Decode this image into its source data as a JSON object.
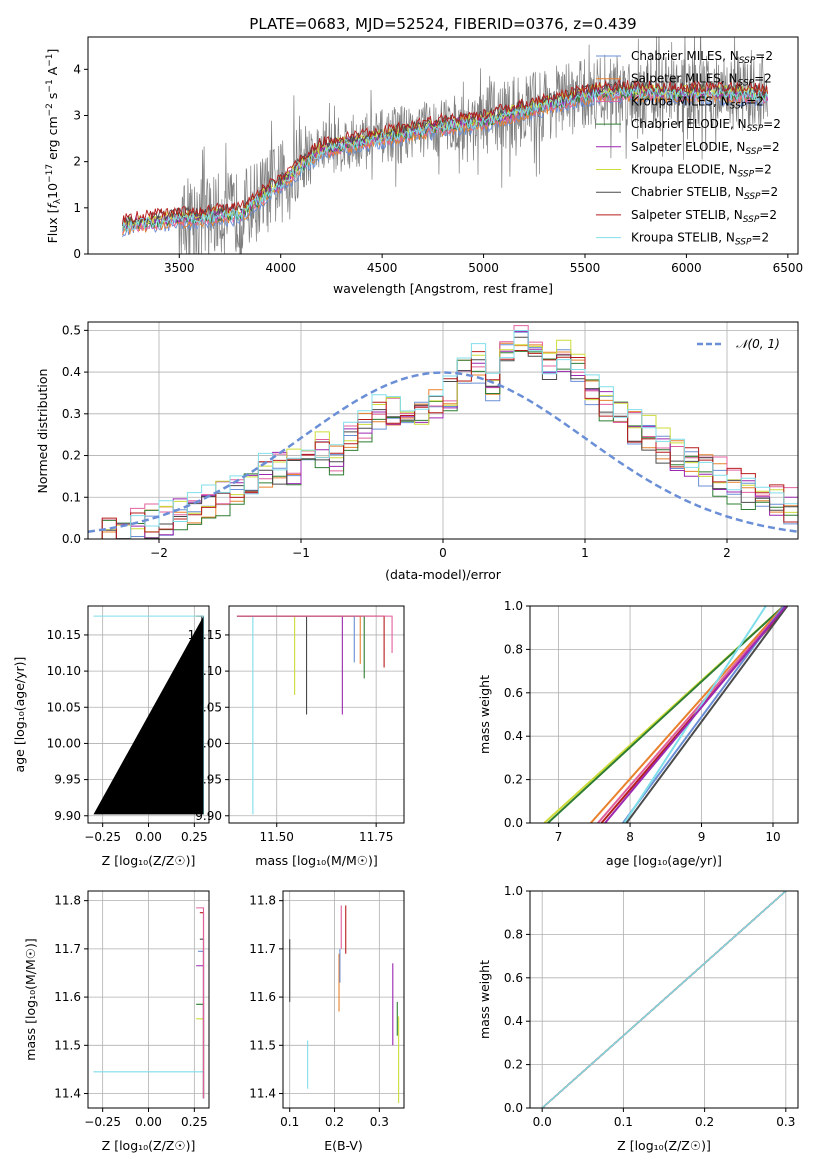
{
  "palette": {
    "Chabrier MILES": "#6b8fd6",
    "Salpeter MILES": "#e8812c",
    "Kroupa MILES": "#e0609e",
    "Chabrier ELODIE": "#2e7d32",
    "Salpeter ELODIE": "#9c27b0",
    "Kroupa ELODIE": "#cddc39",
    "Chabrier STELIB": "#4a4a4a",
    "Salpeter STELIB": "#b71c1c",
    "Kroupa STELIB": "#80deea",
    "Gaussian": "#6b8fd6",
    "data": "#7f7f7f"
  },
  "chart_data": [
    {
      "id": "spectrum",
      "type": "line",
      "title": "PLATE=0683, MJD=52524, FIBERID=0376, z=0.439",
      "xlabel": "wavelength [Angstrom, rest frame]",
      "ylabel": "Flux [f_λ 10^-17 erg cm^-2 s^-1 A^-1]",
      "xlim": [
        3050,
        6550
      ],
      "ylim": [
        0,
        4.7
      ],
      "xticks": [
        "3500",
        "4000",
        "4500",
        "5000",
        "5500",
        "6000",
        "6500"
      ],
      "yticks": [
        "0",
        "1",
        "2",
        "3",
        "4"
      ],
      "legend_loc": "upper right",
      "legend": [
        {
          "base": "Chabrier MILES, N",
          "sub": "SSP",
          "tail": "=2"
        },
        {
          "base": "Salpeter MILES, N",
          "sub": "SSP",
          "tail": "=2"
        },
        {
          "base": "Kroupa MILES, N",
          "sub": "SSP",
          "tail": "=2"
        },
        {
          "base": "Chabrier ELODIE, N",
          "sub": "SSP",
          "tail": "=2"
        },
        {
          "base": "Salpeter ELODIE, N",
          "sub": "SSP",
          "tail": "=2"
        },
        {
          "base": "Kroupa ELODIE, N",
          "sub": "SSP",
          "tail": "=2"
        },
        {
          "base": "Chabrier STELIB, N",
          "sub": "SSP",
          "tail": "=2"
        },
        {
          "base": "Salpeter STELIB, N",
          "sub": "SSP",
          "tail": "=2"
        },
        {
          "base": "Kroupa STELIB, N",
          "sub": "SSP",
          "tail": "=2"
        }
      ],
      "model_continuum": {
        "x": [
          3220,
          3500,
          3800,
          4000,
          4200,
          4500,
          4800,
          5000,
          5300,
          5600,
          5900,
          6200,
          6400
        ],
        "y": [
          0.65,
          0.8,
          0.9,
          1.55,
          2.3,
          2.55,
          2.8,
          2.9,
          3.25,
          3.55,
          3.5,
          3.5,
          3.45
        ]
      },
      "grid": false
    },
    {
      "id": "residuals",
      "type": "histogram",
      "xlabel": "(data-model)/error",
      "ylabel": "Normed distribution",
      "xlim": [
        -2.5,
        2.5
      ],
      "ylim": [
        0,
        0.52
      ],
      "xticks": [
        "−2",
        "−1",
        "0",
        "1",
        "2"
      ],
      "yticks": [
        "0.0",
        "0.1",
        "0.2",
        "0.3",
        "0.4",
        "0.5"
      ],
      "legend": [
        "𝒩(0, 1)"
      ],
      "legend_loc": "upper right",
      "series_name": "𝒩(0, 1)",
      "gaussian": {
        "mu": 0,
        "sigma": 1
      },
      "bins": [
        -2.5,
        -2.4,
        -2.3,
        -2.2,
        -2.1,
        -2.0,
        -1.9,
        -1.8,
        -1.7,
        -1.6,
        -1.5,
        -1.4,
        -1.3,
        -1.2,
        -1.1,
        -1.0,
        -0.9,
        -0.8,
        -0.7,
        -0.6,
        -0.5,
        -0.4,
        -0.3,
        -0.2,
        -0.1,
        0.0,
        0.1,
        0.2,
        0.3,
        0.4,
        0.5,
        0.6,
        0.7,
        0.8,
        0.9,
        1.0,
        1.1,
        1.2,
        1.3,
        1.4,
        1.5,
        1.6,
        1.7,
        1.8,
        1.9,
        2.0,
        2.1,
        2.2,
        2.3,
        2.4,
        2.5
      ],
      "hist_base": [
        0.01,
        0.015,
        0.02,
        0.03,
        0.04,
        0.05,
        0.06,
        0.07,
        0.08,
        0.1,
        0.11,
        0.13,
        0.16,
        0.18,
        0.17,
        0.2,
        0.22,
        0.19,
        0.24,
        0.27,
        0.3,
        0.31,
        0.29,
        0.3,
        0.33,
        0.35,
        0.4,
        0.42,
        0.38,
        0.45,
        0.47,
        0.43,
        0.41,
        0.44,
        0.4,
        0.36,
        0.32,
        0.3,
        0.27,
        0.25,
        0.22,
        0.2,
        0.18,
        0.17,
        0.15,
        0.13,
        0.12,
        0.1,
        0.09,
        0.08
      ],
      "grid": true
    },
    {
      "id": "age-Z",
      "type": "step",
      "xlabel": "Z [log₁₀(Z/Z☉)]",
      "ylabel": "age  [log₁₀(age/yr)]",
      "xlim": [
        -0.33,
        0.33
      ],
      "ylim": [
        9.89,
        10.19
      ],
      "xticks": [
        "−0.25",
        "0.00",
        "0.25"
      ],
      "yticks": [
        "9.90",
        "9.95",
        "10.00",
        "10.05",
        "10.10",
        "10.15"
      ],
      "grid": true
    },
    {
      "id": "age-mass",
      "type": "step",
      "xlabel": "mass [log₁₀(M/M☉)]",
      "ylabel": "",
      "xlim": [
        11.38,
        11.82
      ],
      "ylim": [
        9.89,
        10.19
      ],
      "xticks": [
        "11.50",
        "11.75"
      ],
      "yticks": [
        "9.90",
        "9.95",
        "10.00",
        "10.05",
        "10.10",
        "10.15"
      ],
      "grid": true
    },
    {
      "id": "massweight-age",
      "type": "line",
      "xlabel": "age  [log₁₀(age/yr)]",
      "ylabel": "mass weight",
      "xlim": [
        6.6,
        10.35
      ],
      "ylim": [
        0,
        1
      ],
      "xticks": [
        "7",
        "8",
        "9",
        "10"
      ],
      "yticks": [
        "0.0",
        "0.2",
        "0.4",
        "0.6",
        "0.8",
        "1.0"
      ],
      "lines": [
        {
          "name": "Kroupa ELODIE",
          "x": [
            6.8,
            10.15
          ],
          "y": [
            0,
            1
          ]
        },
        {
          "name": "Chabrier ELODIE",
          "x": [
            6.85,
            10.15
          ],
          "y": [
            0,
            1
          ]
        },
        {
          "name": "Salpeter MILES",
          "x": [
            7.45,
            10.15
          ],
          "y": [
            0,
            1
          ]
        },
        {
          "name": "Kroupa MILES",
          "x": [
            7.55,
            10.17
          ],
          "y": [
            0,
            1
          ]
        },
        {
          "name": "Salpeter STELIB",
          "x": [
            7.6,
            10.2
          ],
          "y": [
            0,
            1
          ]
        },
        {
          "name": "Chabrier MILES",
          "x": [
            7.9,
            10.15
          ],
          "y": [
            0,
            1
          ]
        },
        {
          "name": "Kroupa STELIB",
          "x": [
            7.92,
            9.9
          ],
          "y": [
            0,
            1
          ]
        },
        {
          "name": "Chabrier STELIB",
          "x": [
            7.95,
            10.2
          ],
          "y": [
            0,
            1
          ]
        },
        {
          "name": "Salpeter ELODIE",
          "x": [
            7.65,
            10.18
          ],
          "y": [
            0,
            1
          ]
        }
      ],
      "grid": true
    },
    {
      "id": "mass-Z",
      "type": "step",
      "xlabel": "Z [log₁₀(Z/Z☉)]",
      "ylabel": "mass [log₁₀(M/M☉)]",
      "xlim": [
        -0.33,
        0.33
      ],
      "ylim": [
        11.37,
        11.82
      ],
      "xticks": [
        "−0.25",
        "0.00",
        "0.25"
      ],
      "yticks": [
        "11.4",
        "11.5",
        "11.6",
        "11.7",
        "11.8"
      ],
      "grid": true
    },
    {
      "id": "mass-EBV",
      "type": "segments",
      "xlabel": "E(B-V)",
      "ylabel": "",
      "xlim": [
        0.085,
        0.355
      ],
      "ylim": [
        11.37,
        11.82
      ],
      "xticks": [
        "0.1",
        "0.2",
        "0.3"
      ],
      "yticks": [
        "11.4",
        "11.5",
        "11.6",
        "11.7",
        "11.8"
      ],
      "segments": [
        {
          "name": "Chabrier STELIB",
          "x": 0.1,
          "y": [
            11.59,
            11.72
          ]
        },
        {
          "name": "Kroupa STELIB",
          "x": 0.14,
          "y": [
            11.41,
            11.51
          ]
        },
        {
          "name": "Salpeter MILES",
          "x": 0.21,
          "y": [
            11.57,
            11.69
          ]
        },
        {
          "name": "Chabrier MILES",
          "x": 0.212,
          "y": [
            11.63,
            11.7
          ]
        },
        {
          "name": "Kroupa MILES",
          "x": 0.215,
          "y": [
            11.7,
            11.79
          ]
        },
        {
          "name": "Salpeter STELIB",
          "x": 0.225,
          "y": [
            11.69,
            11.79
          ]
        },
        {
          "name": "Salpeter ELODIE",
          "x": 0.33,
          "y": [
            11.5,
            11.67
          ]
        },
        {
          "name": "Chabrier ELODIE",
          "x": 0.34,
          "y": [
            11.52,
            11.59
          ]
        },
        {
          "name": "Kroupa ELODIE",
          "x": 0.343,
          "y": [
            11.38,
            11.56
          ]
        }
      ],
      "grid": true
    },
    {
      "id": "massweight-Z",
      "type": "line",
      "xlabel": "Z [log₁₀(Z/Z☉)]",
      "ylabel": "mass weight",
      "xlim": [
        -0.015,
        0.315
      ],
      "ylim": [
        0,
        1
      ],
      "xticks": [
        "0.0",
        "0.1",
        "0.2",
        "0.3"
      ],
      "yticks": [
        "0.0",
        "0.2",
        "0.4",
        "0.6",
        "0.8",
        "1.0"
      ],
      "grid": true
    }
  ]
}
